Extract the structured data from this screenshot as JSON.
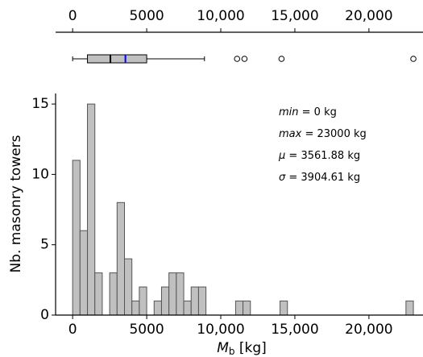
{
  "chart_data": [
    {
      "type": "boxplot",
      "min": 0,
      "q1": 1000,
      "median": 2550,
      "q3": 5000,
      "max": 8900,
      "mean": 3561.88,
      "outliers": [
        11100,
        11600,
        14100,
        23000
      ],
      "box_color": "#c0c0c0",
      "median_color": "#000000",
      "mean_color": "#0000ff",
      "xlim": [
        -1150,
        23650
      ],
      "xticks": [
        0,
        5000,
        {
          "value": 10000,
          "label": "10,000"
        },
        {
          "value": 15000,
          "label": "15,000"
        },
        {
          "value": 20000,
          "label": "20,000"
        }
      ]
    },
    {
      "type": "histogram",
      "x_label": {
        "symbol": "M",
        "subscript": "b",
        "unit": " [kg]"
      },
      "y_label": "Nb. masonry towers",
      "bins": [
        0,
        500,
        1000,
        1500,
        2000,
        2500,
        3000,
        3500,
        4000,
        4500,
        5000,
        5500,
        6000,
        6500,
        7000,
        7500,
        8000,
        8500,
        9000,
        9500,
        10000,
        10500,
        11000,
        11500,
        12000,
        12500,
        13000,
        13500,
        14000,
        14500,
        15000,
        15500,
        16000,
        16500,
        17000,
        17500,
        18000,
        18500,
        19000,
        19500,
        20000,
        20500,
        21000,
        21500,
        22000,
        22500,
        23000
      ],
      "values": [
        11,
        6,
        15,
        3,
        0,
        3,
        8,
        4,
        1,
        2,
        0,
        1,
        2,
        3,
        3,
        1,
        2,
        2,
        0,
        0,
        0,
        0,
        1,
        1,
        0,
        0,
        0,
        0,
        1,
        0,
        0,
        0,
        0,
        0,
        0,
        0,
        0,
        0,
        0,
        0,
        0,
        0,
        0,
        0,
        0,
        1
      ],
      "color": "#c0c0c0",
      "xlim": [
        -1150,
        23650
      ],
      "xticks": [
        0,
        5000,
        {
          "value": 10000,
          "label": "10,000"
        },
        {
          "value": 15000,
          "label": "15,000"
        },
        {
          "value": 20000,
          "label": "20,000"
        }
      ],
      "ylim": [
        0,
        15.75
      ],
      "yticks": [
        0,
        5,
        10,
        15
      ],
      "annotations": [
        {
          "symbol": "min",
          "text": " = 0 kg"
        },
        {
          "symbol": "max",
          "text": " = 23000 kg"
        },
        {
          "symbol": "μ",
          "text": " = 3561.88 kg"
        },
        {
          "symbol": "σ",
          "text": " = 3904.61 kg"
        }
      ]
    }
  ]
}
